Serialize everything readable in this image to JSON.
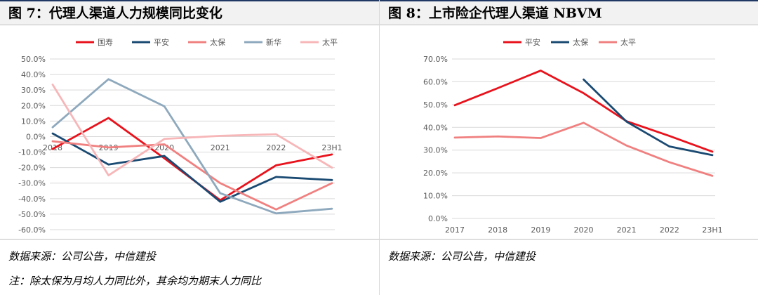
{
  "panels": {
    "left": {
      "title": "图 7：代理人渠道人力规模同比变化",
      "source": "数据来源：公司公告，中信建投",
      "footnote": "注：除太保为月均人力同比外，其余均为期末人力同比"
    },
    "right": {
      "title": "图 8：上市险企代理人渠道 NBVM",
      "source": "数据来源：公司公告，中信建投"
    }
  },
  "chart_data": [
    {
      "type": "line",
      "categories": [
        "2018",
        "2019",
        "2020",
        "2021",
        "2022",
        "23H1"
      ],
      "ylim": [
        -0.6,
        0.5
      ],
      "yticks": [
        "50.0%",
        "40.0%",
        "30.0%",
        "20.0%",
        "10.0%",
        "0.0%",
        "-10.0%",
        "-20.0%",
        "-30.0%",
        "-40.0%",
        "-50.0%",
        "-60.0%"
      ],
      "legend_position": "top",
      "grid": true,
      "series": [
        {
          "name": "国寿",
          "color": "#e8121c",
          "values": [
            -0.08,
            0.12,
            -0.14,
            -0.41,
            -0.185,
            -0.115
          ]
        },
        {
          "name": "平安",
          "color": "#1a4a72",
          "values": [
            0.02,
            -0.18,
            -0.125,
            -0.42,
            -0.26,
            -0.28
          ]
        },
        {
          "name": "太保",
          "color": "#f08080",
          "values": [
            -0.03,
            -0.07,
            -0.05,
            -0.3,
            -0.47,
            -0.3
          ]
        },
        {
          "name": "新华",
          "color": "#8ea9bd",
          "values": [
            0.06,
            0.37,
            0.195,
            -0.365,
            -0.495,
            -0.465
          ]
        },
        {
          "name": "太平",
          "color": "#f7b6b8",
          "values": [
            0.335,
            -0.25,
            -0.015,
            0.005,
            0.015,
            -0.2
          ]
        }
      ]
    },
    {
      "type": "line",
      "categories": [
        "2017",
        "2018",
        "2019",
        "2020",
        "2021",
        "2022",
        "23H1"
      ],
      "ylim": [
        0,
        0.7
      ],
      "yticks": [
        "70.0%",
        "60.0%",
        "50.0%",
        "40.0%",
        "30.0%",
        "20.0%",
        "10.0%",
        "0.0%"
      ],
      "legend_position": "top",
      "grid": true,
      "series": [
        {
          "name": "平安",
          "color": "#e8121c",
          "values": [
            0.497,
            0.572,
            0.649,
            0.55,
            0.427,
            0.362,
            0.293
          ]
        },
        {
          "name": "太保",
          "color": "#1a4a72",
          "values": [
            null,
            null,
            null,
            0.61,
            0.425,
            0.316,
            0.278
          ]
        },
        {
          "name": "太平",
          "color": "#f08080",
          "values": [
            0.355,
            0.36,
            0.353,
            0.42,
            0.32,
            0.247,
            0.187
          ]
        }
      ]
    }
  ]
}
